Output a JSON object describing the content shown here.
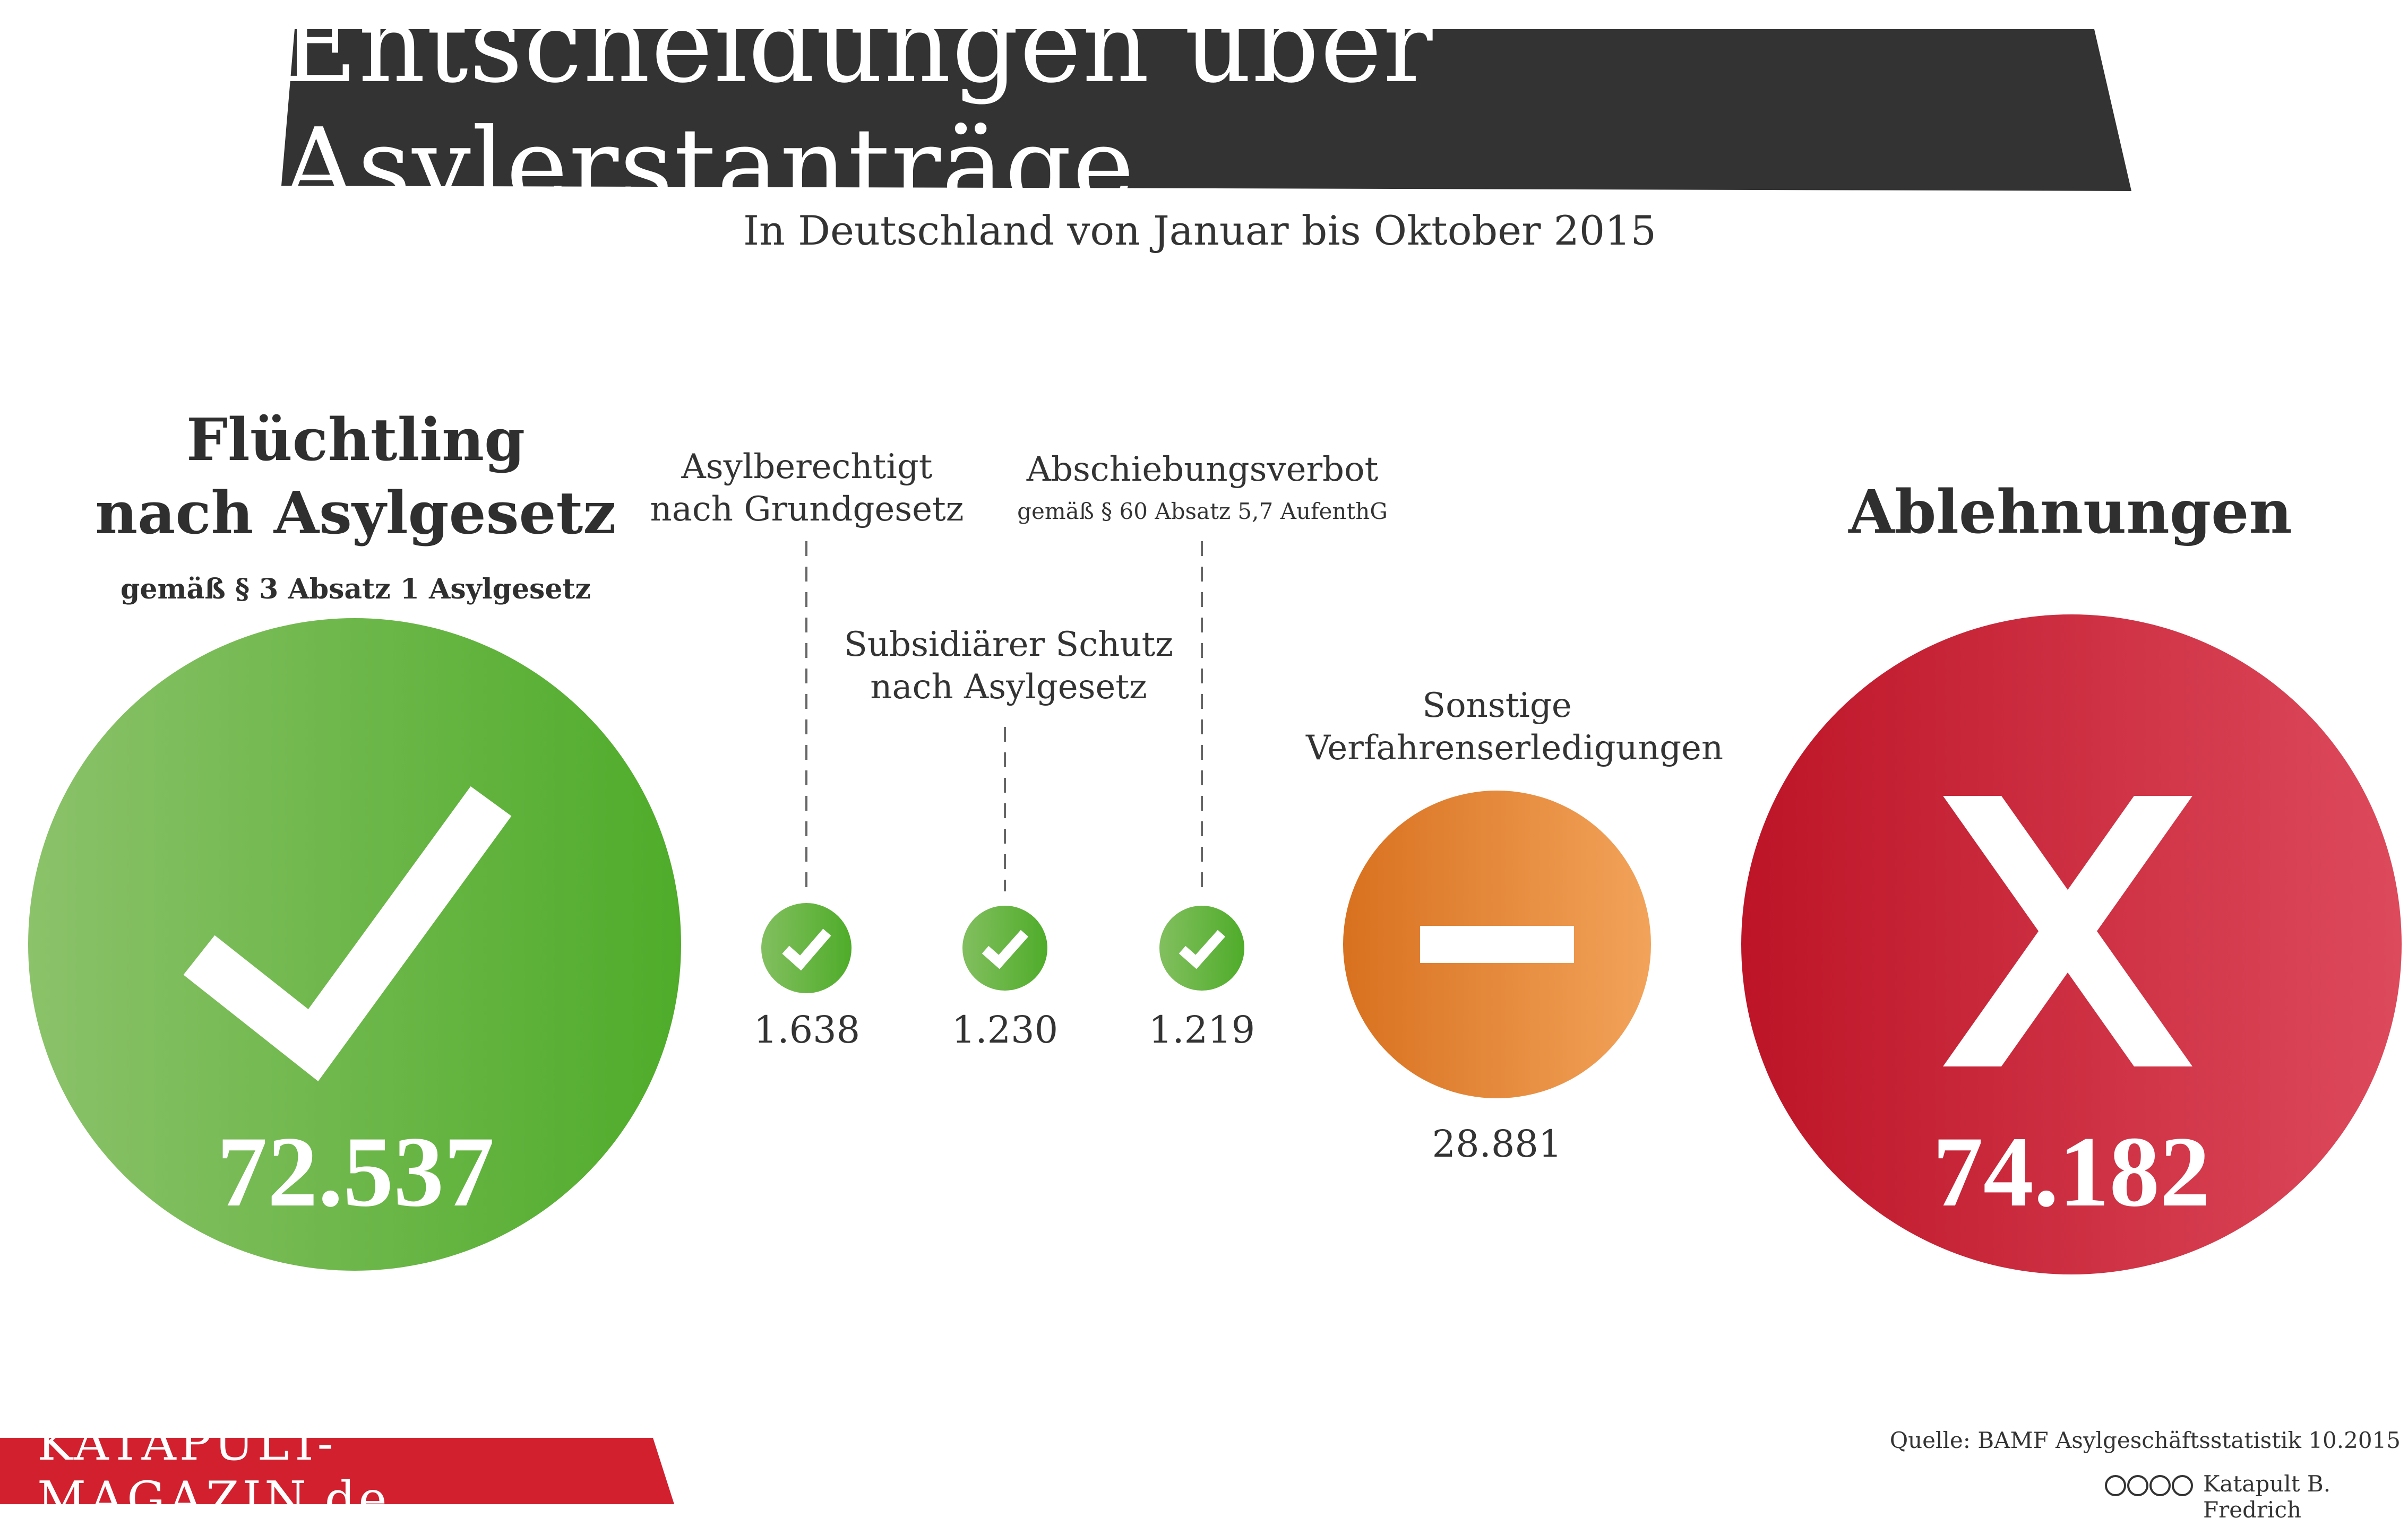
{
  "title": "Entscheidungen über Asylerstanträge",
  "subtitle": "In Deutschland von Januar bis Oktober 2015",
  "fluechtling": {
    "heading_line1": "Flüchtling",
    "heading_line2": "nach Asylgesetz",
    "legal_note": "gemäß § 3 Absatz 1 Asylgesetz",
    "value": "72.537"
  },
  "asylberechtigt": {
    "label_line1": "Asylberechtigt",
    "label_line2": "nach Grundgesetz",
    "value": "1.638"
  },
  "subsidiaer": {
    "label_line1": "Subsidiärer Schutz",
    "label_line2": "nach Asylgesetz",
    "value": "1.230"
  },
  "abschiebungsverbot": {
    "label_line1": "Abschiebungsverbot",
    "label_line2": "gemäß § 60 Absatz 5,7 AufenthG",
    "value": "1.219"
  },
  "sonstige": {
    "label_line1": "Sonstige",
    "label_line2": "Verfahrenserledigungen",
    "value": "28.881"
  },
  "ablehnungen": {
    "heading": "Ablehnungen",
    "value": "74.182"
  },
  "brand": "KATAPULT-MAGAZIN.de",
  "source": "Quelle: BAMF Asylgeschäftsstatistik 10.2015",
  "credit": "Katapult B. Fredrich",
  "colors": {
    "title_bar": "#333333",
    "green_light": "#8bc26a",
    "green_dark": "#4fac2a",
    "orange_dark": "#d8711f",
    "orange_light": "#f2a35a",
    "red_dark": "#c0182b",
    "red_light": "#dd4a5c",
    "brand_red": "#d2202f"
  }
}
